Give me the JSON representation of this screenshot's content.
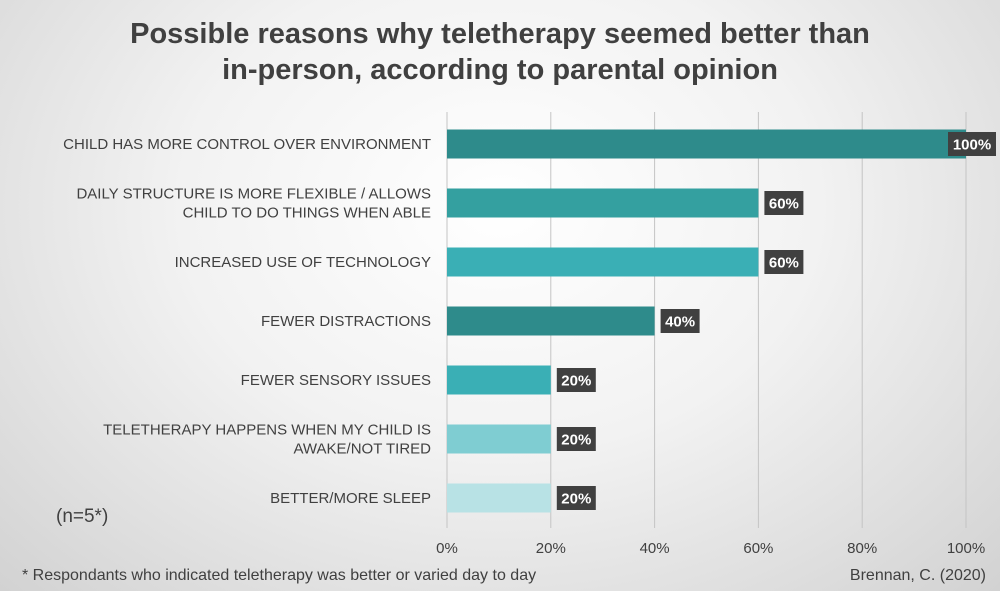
{
  "chart_data": {
    "type": "bar",
    "orientation": "horizontal",
    "title_line1": "Possible reasons why teletherapy seemed better than",
    "title_line2": "in-person, according to parental opinion",
    "categories": [
      [
        "CHILD HAS MORE CONTROL OVER ENVIRONMENT"
      ],
      [
        "DAILY STRUCTURE IS MORE FLEXIBLE / ALLOWS",
        "CHILD TO DO THINGS WHEN ABLE"
      ],
      [
        "INCREASED USE OF TECHNOLOGY"
      ],
      [
        "FEWER DISTRACTIONS"
      ],
      [
        "FEWER SENSORY ISSUES"
      ],
      [
        "TELETHERAPY HAPPENS WHEN MY CHILD IS",
        "AWAKE/NOT TIRED"
      ],
      [
        "BETTER/MORE SLEEP"
      ]
    ],
    "values": [
      100,
      60,
      60,
      40,
      20,
      20,
      20
    ],
    "data_labels": [
      "100%",
      "60%",
      "60%",
      "40%",
      "20%",
      "20%",
      "20%"
    ],
    "bar_colors": [
      "#2e8b8b",
      "#34a0a0",
      "#3aafb5",
      "#2e8b8b",
      "#3aafb5",
      "#7fcdd2",
      "#b8e2e5"
    ],
    "xlim": [
      0,
      100
    ],
    "x_ticks": [
      "0%",
      "20%",
      "40%",
      "60%",
      "80%",
      "100%"
    ],
    "grid": true
  },
  "note": "(n=5*)",
  "footnote": "* Respondants who indicated teletherapy was better or varied day to day",
  "credit": "Brennan, C. (2020)"
}
